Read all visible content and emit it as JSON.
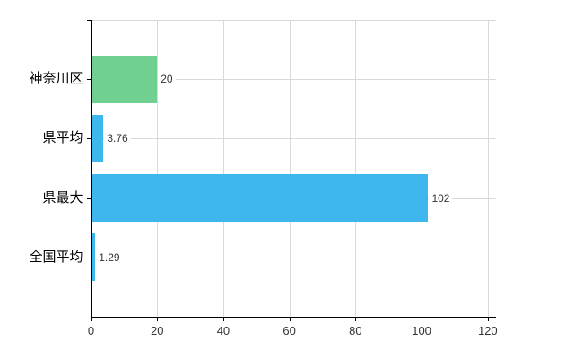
{
  "chart_data": {
    "type": "bar",
    "orientation": "horizontal",
    "title": "",
    "xlabel": "",
    "ylabel": "",
    "categories": [
      "神奈川区",
      "県平均",
      "県最大",
      "全国平均"
    ],
    "values": [
      20,
      3.76,
      102,
      1.29
    ],
    "value_labels": [
      "20",
      "3.76",
      "102",
      "1.29"
    ],
    "bar_colors": [
      "#70d092",
      "#3eb6ee",
      "#3eb6ee",
      "#3eb6ee"
    ],
    "xlim": [
      0,
      120
    ],
    "xticks": [
      0,
      20,
      40,
      60,
      80,
      100,
      120
    ],
    "xtick_labels": [
      "0",
      "20",
      "40",
      "60",
      "80",
      "100",
      "120"
    ],
    "grid": true,
    "legend": false,
    "colors": {
      "bar_green": "#70d092",
      "bar_blue": "#3eb6ee",
      "gridline": "#d9d9d9",
      "axis": "#000000",
      "text": "#000000",
      "background": "#ffffff"
    }
  }
}
